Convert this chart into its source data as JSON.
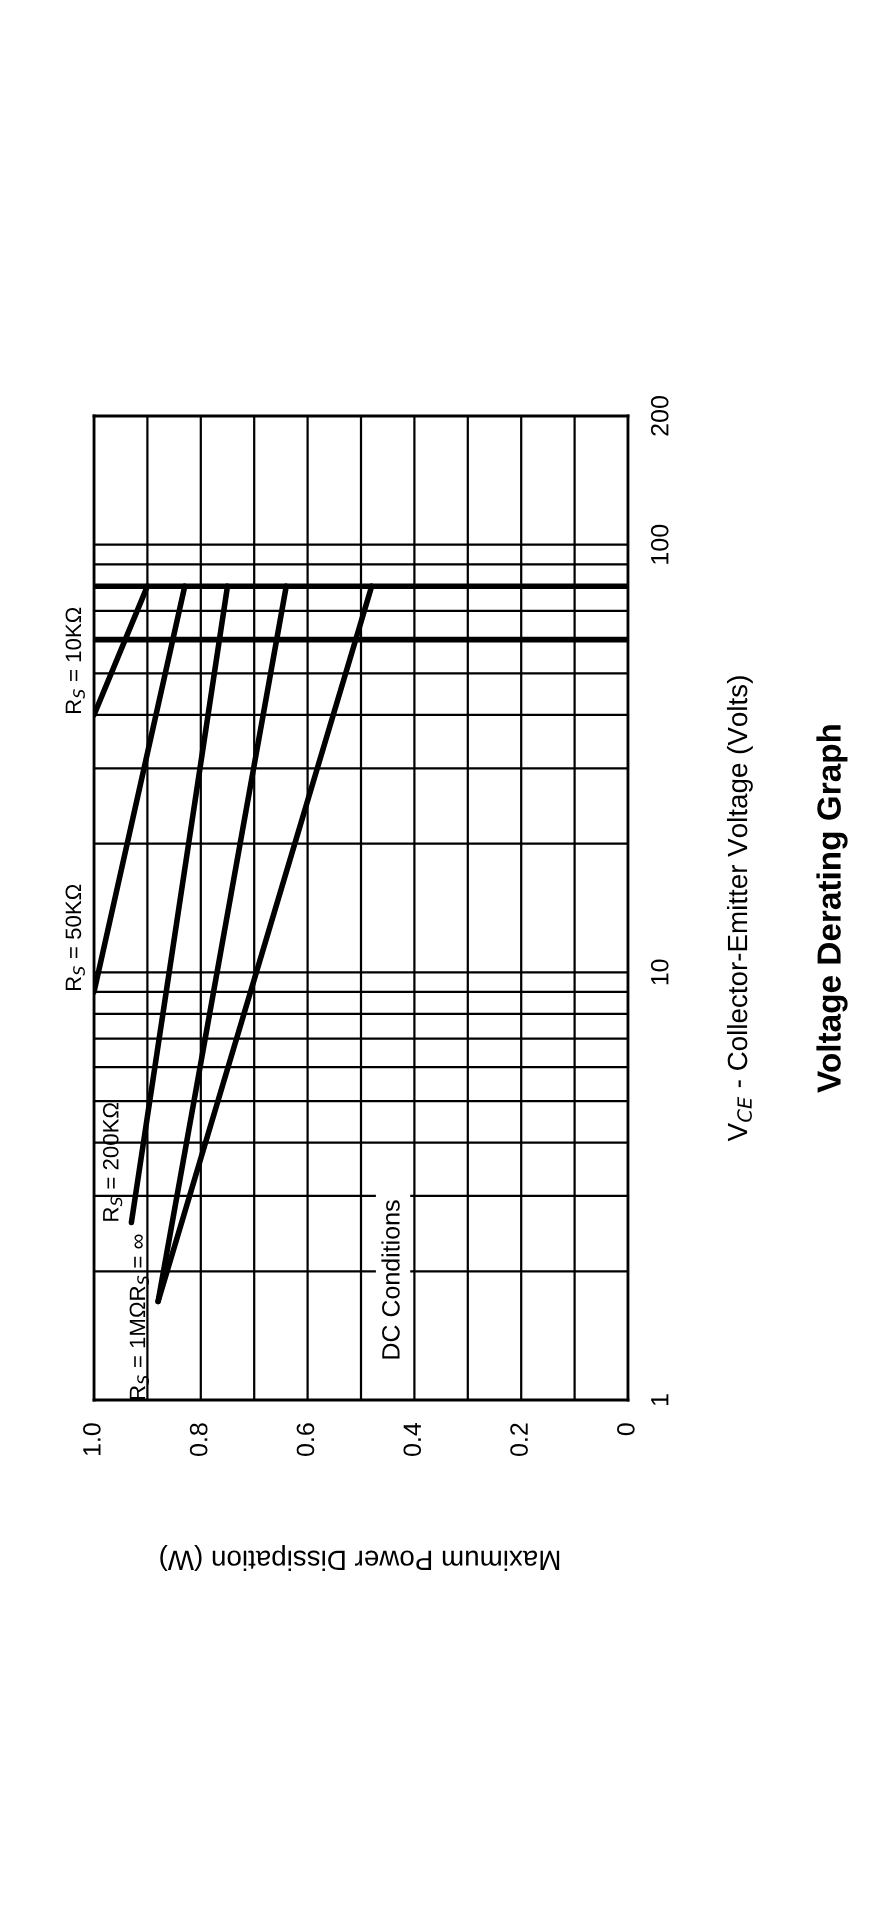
{
  "chart_data": {
    "type": "line",
    "title": "Voltage Derating Graph",
    "xlabel": "Maximum Power Dissipation (W)",
    "ylabel": "V$_{CE}$ - Collector-Emitter Voltage (Volts)",
    "log": "y",
    "grid": true,
    "legend": false,
    "marker": "none",
    "line_style": "solid",
    "xlim": [
      1.0,
      0
    ],
    "xticks": [
      {
        "value": 1.0,
        "label": "1.0"
      },
      {
        "value": 0.9,
        "label": null
      },
      0.8,
      {
        "value": 0.7,
        "label": null
      },
      0.6,
      {
        "value": 0.5,
        "label": null
      },
      0.4,
      {
        "value": 0.3,
        "label": null
      },
      0.2,
      {
        "value": 0.1,
        "label": null
      },
      0
    ],
    "ylim": [
      1,
      200
    ],
    "yticks": [
      1,
      {
        "value": 2,
        "label": null
      },
      {
        "value": 3,
        "label": null
      },
      {
        "value": 4,
        "label": null
      },
      {
        "value": 5,
        "label": null
      },
      {
        "value": 6,
        "label": null
      },
      {
        "value": 7,
        "label": null
      },
      {
        "value": 8,
        "label": null
      },
      {
        "value": 9,
        "label": null
      },
      10,
      {
        "value": 20,
        "label": null
      },
      {
        "value": 30,
        "label": null
      },
      {
        "value": 40,
        "label": null
      },
      {
        "value": 50,
        "label": null
      },
      {
        "value": 70,
        "label": null
      },
      {
        "value": 90,
        "label": null
      },
      100,
      200
    ],
    "series": [
      {
        "name": "R$_{S}$ = 10KΩ",
        "color": "#000000",
        "x": [
          1.0,
          0.9
        ],
        "values": [
          40,
          80
        ]
      },
      {
        "name": "R$_{S}$ = 50KΩ",
        "color": "#000000",
        "x": [
          1.0,
          0.83
        ],
        "values": [
          9,
          80
        ]
      },
      {
        "name": "R$_{S}$ = 200KΩ",
        "color": "#000000",
        "x": [
          0.93,
          0.75
        ],
        "values": [
          2.6,
          80
        ]
      },
      {
        "name": "R$_{S}$ = 1MΩ",
        "color": "#000000",
        "x": [
          0.88,
          0.64
        ],
        "values": [
          1.7,
          80
        ]
      },
      {
        "name": "R$_{S}$ = ∞",
        "color": "#000000",
        "x": [
          0.88,
          0.48
        ],
        "values": [
          1.7,
          80
        ]
      }
    ],
    "ref_lines": [
      {
        "axis": "y",
        "value": 60,
        "color": "#000000"
      },
      {
        "axis": "y",
        "value": 80,
        "color": "#000000"
      }
    ],
    "annotations": [
      "DC Conditions"
    ]
  }
}
